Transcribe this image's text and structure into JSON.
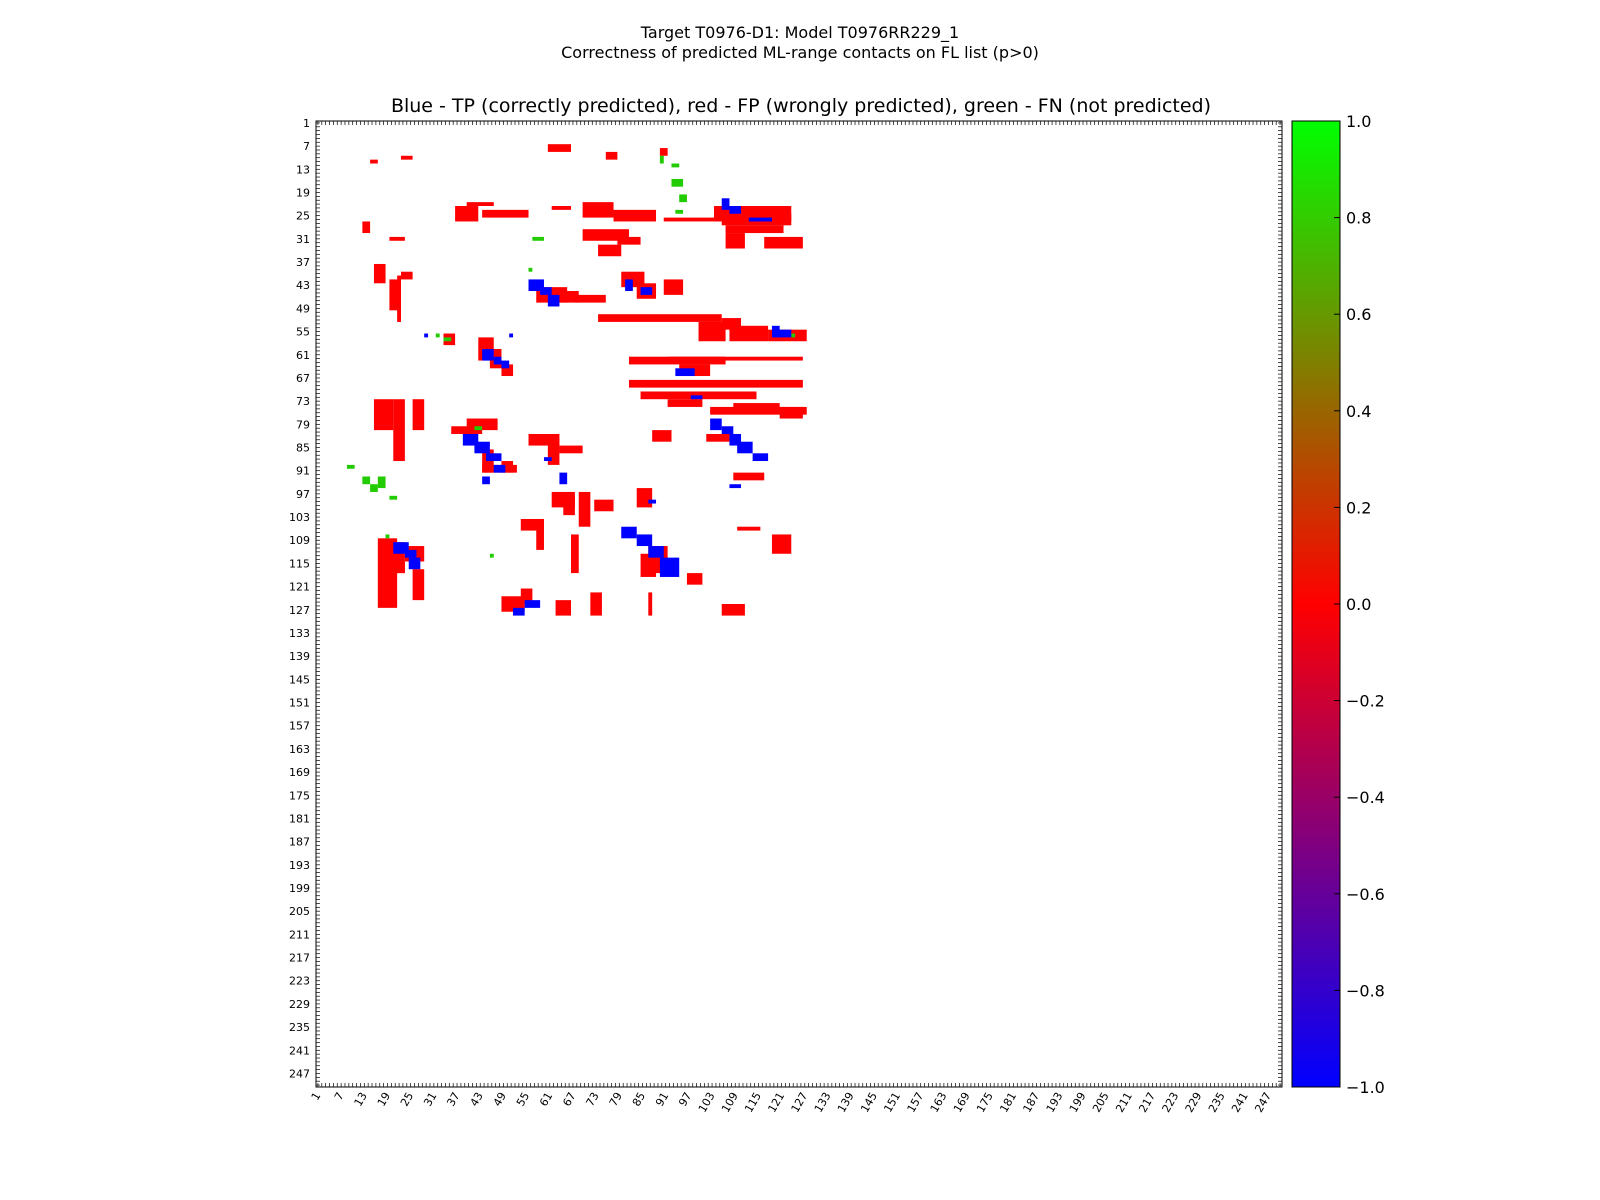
{
  "chart_data": {
    "type": "heatmap",
    "title": "Target T0976-D1: Model T0976RR229_1",
    "subtitle": "Correctness of predicted ML-range contacts on FL list (p>0)",
    "legend_text": "Blue - TP (correctly predicted), red - FP (wrongly predicted), green - FN (not predicted)",
    "axis_range": [
      1,
      250
    ],
    "tick_values": [
      1,
      7,
      13,
      19,
      25,
      31,
      37,
      43,
      49,
      55,
      61,
      67,
      73,
      79,
      85,
      91,
      97,
      103,
      109,
      115,
      121,
      127,
      133,
      139,
      145,
      151,
      157,
      163,
      169,
      175,
      181,
      187,
      193,
      199,
      205,
      211,
      217,
      223,
      229,
      235,
      241,
      247
    ],
    "tick_labels": [
      "1",
      "7",
      "13",
      "19",
      "25",
      "31",
      "37",
      "43",
      "49",
      "55",
      "61",
      "67",
      "73",
      "79",
      "85",
      "91",
      "97",
      "103",
      "109",
      "115",
      "121",
      "127",
      "133",
      "139",
      "145",
      "151",
      "157",
      "163",
      "169",
      "175",
      "181",
      "187",
      "193",
      "199",
      "205",
      "211",
      "217",
      "223",
      "229",
      "235",
      "241",
      "247"
    ],
    "colorbar": {
      "range": [
        -1.0,
        1.0
      ],
      "tick_values": [
        1.0,
        0.8,
        0.6,
        0.4,
        0.2,
        0.0,
        -0.2,
        -0.4,
        -0.6,
        -0.8,
        -1.0
      ],
      "tick_labels": [
        "1.0",
        "0.8",
        "0.6",
        "0.4",
        "0.2",
        "0.0",
        "−0.2",
        "−0.4",
        "−0.6",
        "−0.8",
        "−1.0"
      ],
      "colors": {
        "low": "#0000ff",
        "mid": "#ff0000",
        "high": "#00ff00"
      }
    },
    "colors": {
      "TP": "#0000ff",
      "FP": "#ff0000",
      "FN": "#22cc00"
    },
    "fp_blocks": [
      [
        10,
        23,
        1,
        3
      ],
      [
        11,
        15,
        1,
        2
      ],
      [
        7,
        61,
        2,
        6
      ],
      [
        9,
        76,
        2,
        3
      ],
      [
        8,
        90,
        2,
        2
      ],
      [
        22,
        40,
        1,
        7
      ],
      [
        23,
        37,
        4,
        6
      ],
      [
        24,
        44,
        2,
        12
      ],
      [
        22,
        70,
        4,
        8
      ],
      [
        24,
        78,
        3,
        11
      ],
      [
        23,
        104,
        4,
        20
      ],
      [
        25,
        106,
        3,
        18
      ],
      [
        26,
        91,
        1,
        15
      ],
      [
        23,
        62,
        1,
        5
      ],
      [
        28,
        107,
        2,
        15
      ],
      [
        29,
        70,
        3,
        12
      ],
      [
        31,
        79,
        2,
        6
      ],
      [
        30,
        107,
        4,
        5
      ],
      [
        31,
        117,
        3,
        10
      ],
      [
        33,
        74,
        3,
        6
      ],
      [
        27,
        13,
        3,
        2
      ],
      [
        31,
        20,
        1,
        4
      ],
      [
        38,
        16,
        5,
        3
      ],
      [
        40,
        23,
        2,
        3
      ],
      [
        41,
        22,
        12,
        1
      ],
      [
        42,
        20,
        8,
        3
      ],
      [
        44,
        58,
        4,
        8
      ],
      [
        45,
        64,
        3,
        5
      ],
      [
        40,
        80,
        4,
        6
      ],
      [
        43,
        84,
        4,
        5
      ],
      [
        42,
        91,
        4,
        5
      ],
      [
        46,
        68,
        2,
        8
      ],
      [
        51,
        74,
        2,
        32
      ],
      [
        52,
        106,
        3,
        5
      ],
      [
        54,
        108,
        4,
        10
      ],
      [
        55,
        118,
        3,
        10
      ],
      [
        53,
        100,
        5,
        7
      ],
      [
        56,
        34,
        3,
        3
      ],
      [
        57,
        43,
        6,
        4
      ],
      [
        60,
        46,
        5,
        3
      ],
      [
        64,
        49,
        3,
        3
      ],
      [
        62,
        82,
        2,
        25
      ],
      [
        62,
        92,
        1,
        35
      ],
      [
        64,
        95,
        3,
        8
      ],
      [
        68,
        82,
        2,
        45
      ],
      [
        71,
        85,
        2,
        30
      ],
      [
        73,
        92,
        2,
        9
      ],
      [
        75,
        103,
        2,
        25
      ],
      [
        75,
        121,
        3,
        6
      ],
      [
        74,
        109,
        2,
        12
      ],
      [
        73,
        16,
        8,
        5
      ],
      [
        73,
        21,
        16,
        3
      ],
      [
        73,
        26,
        8,
        3
      ],
      [
        78,
        40,
        3,
        8
      ],
      [
        80,
        36,
        2,
        8
      ],
      [
        82,
        56,
        3,
        8
      ],
      [
        83,
        61,
        7,
        3
      ],
      [
        85,
        64,
        2,
        6
      ],
      [
        81,
        88,
        3,
        5
      ],
      [
        82,
        102,
        2,
        6
      ],
      [
        86,
        44,
        6,
        3
      ],
      [
        89,
        49,
        3,
        3
      ],
      [
        90,
        44,
        2,
        9
      ],
      [
        92,
        109,
        2,
        8
      ],
      [
        97,
        62,
        4,
        6
      ],
      [
        96,
        84,
        5,
        4
      ],
      [
        98,
        65,
        5,
        3
      ],
      [
        97,
        69,
        9,
        3
      ],
      [
        99,
        73,
        3,
        5
      ],
      [
        104,
        54,
        3,
        6
      ],
      [
        104,
        58,
        8,
        2
      ],
      [
        106,
        110,
        1,
        6
      ],
      [
        108,
        67,
        10,
        2
      ],
      [
        109,
        17,
        18,
        5
      ],
      [
        110,
        21,
        8,
        3
      ],
      [
        111,
        24,
        4,
        5
      ],
      [
        115,
        22,
        3,
        2
      ],
      [
        117,
        26,
        8,
        3
      ],
      [
        108,
        119,
        5,
        5
      ],
      [
        111,
        87,
        7,
        5
      ],
      [
        113,
        85,
        6,
        4
      ],
      [
        118,
        97,
        3,
        4
      ],
      [
        124,
        49,
        4,
        6
      ],
      [
        122,
        54,
        4,
        3
      ],
      [
        125,
        63,
        4,
        4
      ],
      [
        123,
        72,
        6,
        3
      ],
      [
        123,
        87,
        6,
        1
      ],
      [
        126,
        106,
        3,
        6
      ]
    ],
    "tp_blocks": [
      [
        42,
        56,
        3,
        4
      ],
      [
        44,
        59,
        2,
        3
      ],
      [
        46,
        61,
        3,
        3
      ],
      [
        42,
        81,
        3,
        2
      ],
      [
        44,
        85,
        2,
        3
      ],
      [
        60,
        44,
        3,
        3
      ],
      [
        62,
        47,
        2,
        2
      ],
      [
        63,
        49,
        2,
        2
      ],
      [
        21,
        106,
        3,
        2
      ],
      [
        23,
        108,
        2,
        3
      ],
      [
        26,
        113,
        1,
        6
      ],
      [
        54,
        119,
        3,
        2
      ],
      [
        55,
        120,
        2,
        4
      ],
      [
        65,
        94,
        2,
        5
      ],
      [
        72,
        98,
        1,
        3
      ],
      [
        78,
        103,
        3,
        3
      ],
      [
        80,
        106,
        2,
        3
      ],
      [
        82,
        108,
        3,
        3
      ],
      [
        84,
        110,
        3,
        4
      ],
      [
        87,
        114,
        2,
        4
      ],
      [
        95,
        108,
        1,
        3
      ],
      [
        82,
        39,
        3,
        4
      ],
      [
        84,
        42,
        3,
        4
      ],
      [
        87,
        45,
        2,
        4
      ],
      [
        90,
        47,
        2,
        3
      ],
      [
        93,
        44,
        2,
        2
      ],
      [
        88,
        60,
        1,
        2
      ],
      [
        92,
        64,
        3,
        2
      ],
      [
        106,
        80,
        3,
        4
      ],
      [
        108,
        84,
        3,
        4
      ],
      [
        111,
        87,
        3,
        4
      ],
      [
        114,
        90,
        5,
        5
      ],
      [
        110,
        21,
        3,
        4
      ],
      [
        112,
        24,
        2,
        3
      ],
      [
        114,
        25,
        3,
        3
      ],
      [
        125,
        55,
        2,
        4
      ],
      [
        127,
        52,
        2,
        3
      ],
      [
        99,
        87,
        1,
        2
      ],
      [
        56,
        29,
        1,
        1
      ],
      [
        56,
        51,
        1,
        1
      ]
    ],
    "fn_blocks": [
      [
        10,
        90,
        2,
        1
      ],
      [
        12,
        93,
        1,
        2
      ],
      [
        16,
        93,
        2,
        3
      ],
      [
        20,
        95,
        2,
        2
      ],
      [
        24,
        94,
        1,
        2
      ],
      [
        90,
        9,
        1,
        2
      ],
      [
        93,
        13,
        2,
        2
      ],
      [
        93,
        17,
        3,
        2
      ],
      [
        95,
        15,
        2,
        2
      ],
      [
        98,
        20,
        1,
        2
      ],
      [
        31,
        57,
        1,
        3
      ],
      [
        39,
        56,
        1,
        1
      ],
      [
        56,
        32,
        1,
        1
      ],
      [
        57,
        34,
        1,
        2
      ],
      [
        43,
        57,
        1,
        2
      ],
      [
        80,
        42,
        1,
        2
      ],
      [
        108,
        19,
        1,
        1
      ],
      [
        113,
        46,
        1,
        1
      ],
      [
        56,
        124,
        1,
        1
      ]
    ]
  }
}
